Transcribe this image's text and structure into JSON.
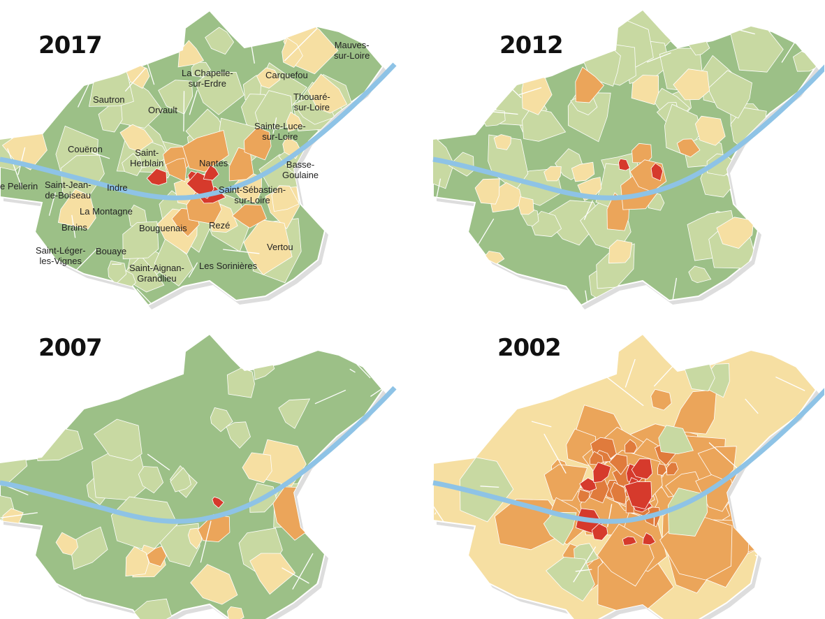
{
  "colors": {
    "green": "#9cc087",
    "light_green": "#c8d9a2",
    "pale_yellow": "#f6dfa2",
    "orange": "#eba55a",
    "dark_orange": "#e07b3c",
    "red": "#d63a2c",
    "river": "#8ec3e6",
    "border": "#ffffff"
  },
  "maps": [
    {
      "year": "2017",
      "base": "green",
      "patches": {
        "light_green": 40,
        "pale_yellow": 18,
        "orange": 8,
        "red": 5
      }
    },
    {
      "year": "2012",
      "base": "green",
      "patches": {
        "light_green": 45,
        "pale_yellow": 14,
        "orange": 6,
        "red": 2
      }
    },
    {
      "year": "2007",
      "base": "green",
      "patches": {
        "light_green": 22,
        "pale_yellow": 10,
        "orange": 3,
        "red": 1
      }
    },
    {
      "year": "2002",
      "base": "pale_yellow",
      "patches": {
        "orange": 45,
        "dark_orange": 20,
        "red": 12,
        "light_green": 8
      }
    }
  ],
  "communes": {
    "mauves": "Mauves-\nsur-Loire",
    "chapelle": "La Chapelle-\nsur-Erdre",
    "carquefou": "Carquefou",
    "sautron": "Sautron",
    "orvault": "Orvault",
    "thouare": "Thouaré-\nsur-Loire",
    "sainte_luce": "Sainte-Luce-\nsur-Loire",
    "coueron": "Couëron",
    "saint_herblain": "Saint-\nHerblain",
    "nantes": "Nantes",
    "basse_goulaine": "Basse-\nGoulaine",
    "le_pellerin": "e Pellerin",
    "saint_jean": "Saint-Jean-\nde-Boiseau",
    "indre": "Indre",
    "la_montagne": "La Montagne",
    "saint_sebastien": "Saint-Sébastien-\nsur-Loire",
    "brains": "Brains",
    "bouguenais": "Bouguenais",
    "reze": "Rezé",
    "saint_leger": "Saint-Léger-\nles-Vignes",
    "bouaye": "Bouaye",
    "vertou": "Vertou",
    "saint_aignan": "Saint-Aignan-\nGrandlieu",
    "sorinieres": "Les Sorinières"
  }
}
